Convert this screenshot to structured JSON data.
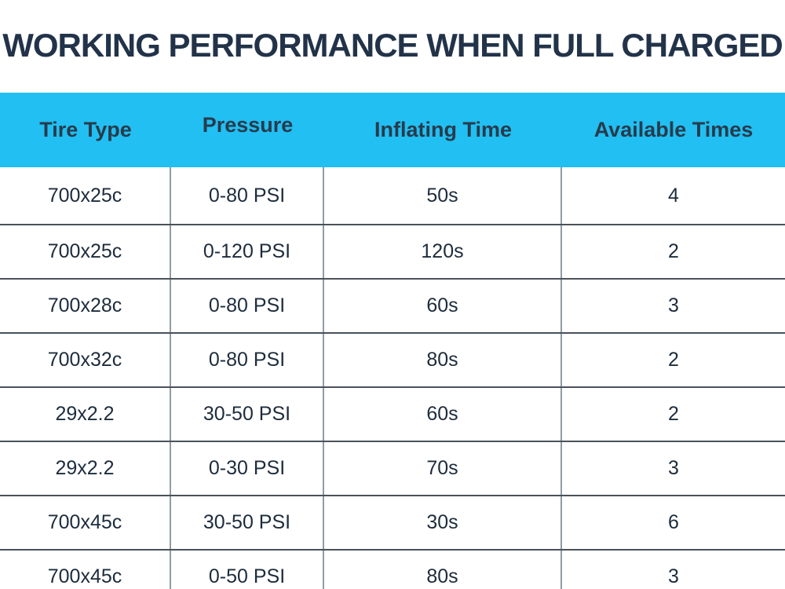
{
  "title": "WORKING PERFORMANCE WHEN FULL CHARGED",
  "colors": {
    "header_background": "#22bff2",
    "header_text": "#273b4c",
    "title_text": "#223349",
    "body_text": "#1d2c3c",
    "horizontal_divider": "#49525a",
    "vertical_divider": "#909ca3",
    "page_background": "#ffffff"
  },
  "chart_data": {
    "type": "table",
    "title": "WORKING PERFORMANCE WHEN FULL CHARGED",
    "columns": [
      "Tire Type",
      "Pressure",
      "Inflating Time",
      "Available Times"
    ],
    "rows": [
      [
        "700x25c",
        "0-80 PSI",
        "50s",
        "4"
      ],
      [
        "700x25c",
        "0-120 PSI",
        "120s",
        "2"
      ],
      [
        "700x28c",
        "0-80 PSI",
        "60s",
        "3"
      ],
      [
        "700x32c",
        "0-80 PSI",
        "80s",
        "2"
      ],
      [
        "29x2.2",
        "30-50 PSI",
        "60s",
        "2"
      ],
      [
        "29x2.2",
        "0-30 PSI",
        "70s",
        "3"
      ],
      [
        "700x45c",
        "30-50 PSI",
        "30s",
        "6"
      ],
      [
        "700x45c",
        "0-50 PSI",
        "80s",
        "3"
      ]
    ]
  }
}
